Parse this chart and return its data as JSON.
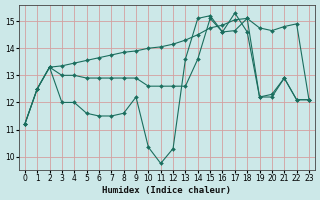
{
  "xlabel": "Humidex (Indice chaleur)",
  "bg_color": "#cce8e8",
  "grid_color": "#d4a0a0",
  "line_color": "#1a6e5e",
  "xlim": [
    -0.5,
    23.5
  ],
  "ylim": [
    9.5,
    15.6
  ],
  "xticks": [
    0,
    1,
    2,
    3,
    4,
    5,
    6,
    7,
    8,
    9,
    10,
    11,
    12,
    13,
    14,
    15,
    16,
    17,
    18,
    19,
    20,
    21,
    22,
    23
  ],
  "yticks": [
    10,
    11,
    12,
    13,
    14,
    15
  ],
  "line1_x": [
    0,
    1,
    2,
    3,
    4,
    5,
    6,
    7,
    8,
    9,
    10,
    11,
    12,
    13,
    14,
    15,
    16,
    17,
    18,
    19,
    20,
    21,
    22,
    23
  ],
  "line1_y": [
    11.2,
    12.5,
    13.3,
    13.35,
    13.45,
    13.55,
    13.65,
    13.75,
    13.85,
    13.9,
    14.0,
    14.05,
    14.15,
    14.3,
    14.5,
    14.75,
    14.85,
    15.05,
    15.1,
    14.75,
    14.65,
    14.8,
    14.9,
    12.1
  ],
  "line2_x": [
    0,
    1,
    2,
    3,
    4,
    5,
    6,
    7,
    8,
    9,
    10,
    11,
    12,
    13,
    14,
    15,
    16,
    17,
    18,
    19,
    20,
    21,
    22,
    23
  ],
  "line2_y": [
    11.2,
    12.5,
    13.3,
    13.0,
    13.0,
    12.9,
    12.9,
    12.9,
    12.9,
    12.9,
    12.6,
    12.6,
    12.6,
    12.6,
    13.6,
    15.1,
    14.6,
    14.65,
    15.1,
    12.2,
    12.2,
    12.9,
    12.1,
    12.1
  ],
  "line3_x": [
    0,
    1,
    2,
    3,
    4,
    5,
    6,
    7,
    8,
    9,
    10,
    11,
    12,
    13,
    14,
    15,
    16,
    17,
    18,
    19,
    20,
    21,
    22,
    23
  ],
  "line3_y": [
    11.2,
    12.5,
    13.3,
    12.0,
    12.0,
    11.6,
    11.5,
    11.5,
    11.6,
    12.2,
    10.35,
    9.75,
    10.3,
    13.6,
    15.1,
    15.2,
    14.6,
    15.3,
    14.6,
    12.2,
    12.3,
    12.9,
    12.1,
    12.1
  ]
}
